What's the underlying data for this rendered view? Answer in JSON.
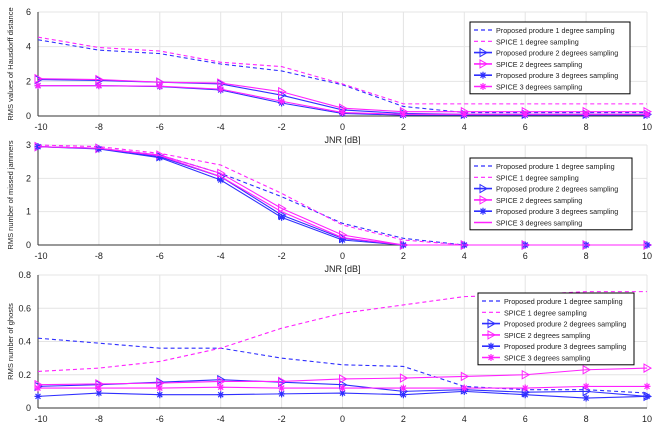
{
  "colors": {
    "blue": "#2f2fff",
    "magenta": "#ff22ff"
  },
  "chart_data": [
    {
      "type": "line",
      "xlabel": "JNR [dB]",
      "ylabel": "RMS values of Hausdorff distance",
      "ylim": [
        0,
        6
      ],
      "yticks": [
        0,
        2,
        4,
        6
      ],
      "xlim": [
        -10,
        10
      ],
      "xticks": [
        -10,
        -8,
        -6,
        -4,
        -2,
        0,
        2,
        4,
        6,
        8,
        10
      ],
      "grid": true,
      "legend": "top-right",
      "x": [
        -10,
        -8,
        -6,
        -4,
        -2,
        0,
        2,
        4,
        6,
        8,
        10
      ],
      "series": [
        {
          "name": "Proposed produre 1 degree sampling",
          "color": "blue",
          "style": "dashed",
          "marker": "none",
          "values": [
            4.4,
            3.8,
            3.6,
            3.0,
            2.6,
            1.8,
            0.55,
            0.2,
            0.2,
            0.2,
            0.2
          ]
        },
        {
          "name": "SPICE 1 degree sampling",
          "color": "magenta",
          "style": "dashed",
          "marker": "none",
          "values": [
            4.55,
            3.95,
            3.75,
            3.1,
            2.85,
            1.85,
            0.7,
            0.7,
            0.7,
            0.7,
            0.7
          ]
        },
        {
          "name": "Proposed produre 2 degrees sampling",
          "color": "blue",
          "style": "solid",
          "marker": "triangle",
          "values": [
            2.1,
            2.05,
            1.95,
            1.85,
            1.2,
            0.35,
            0.15,
            0.1,
            0.1,
            0.1,
            0.1
          ]
        },
        {
          "name": "SPICE 2 degrees sampling",
          "color": "magenta",
          "style": "solid",
          "marker": "triangle",
          "values": [
            2.15,
            2.1,
            1.95,
            1.9,
            1.4,
            0.45,
            0.25,
            0.25,
            0.25,
            0.25,
            0.25
          ]
        },
        {
          "name": "Proposed produre 3 degrees sampling",
          "color": "blue",
          "style": "solid",
          "marker": "star",
          "values": [
            1.75,
            1.75,
            1.7,
            1.5,
            0.75,
            0.15,
            0.05,
            0.05,
            0.05,
            0.05,
            0.05
          ]
        },
        {
          "name": "SPICE 3 degrees sampling",
          "color": "magenta",
          "style": "solid",
          "marker": "star",
          "values": [
            1.75,
            1.75,
            1.72,
            1.55,
            0.85,
            0.2,
            0.1,
            0.1,
            0.1,
            0.1,
            0.1
          ]
        }
      ]
    },
    {
      "type": "line",
      "xlabel": "JNR [dB]",
      "ylabel": "RMS number of missed jammers",
      "ylim": [
        0,
        3
      ],
      "yticks": [
        0,
        1,
        2,
        3
      ],
      "xlim": [
        -10,
        10
      ],
      "xticks": [
        -10,
        -8,
        -6,
        -4,
        -2,
        0,
        2,
        4,
        6,
        8,
        10
      ],
      "grid": true,
      "legend": "right",
      "x": [
        -10,
        -8,
        -6,
        -4,
        -2,
        0,
        2,
        4,
        6,
        8,
        10
      ],
      "series": [
        {
          "name": "Proposed produre 1 degree sampling",
          "color": "blue",
          "style": "dashed",
          "marker": "none",
          "values": [
            2.95,
            2.9,
            2.7,
            2.15,
            1.45,
            0.65,
            0.2,
            0,
            0,
            0,
            0
          ]
        },
        {
          "name": "SPICE 1 degree sampling",
          "color": "magenta",
          "style": "dashed",
          "marker": "none",
          "values": [
            3.0,
            2.95,
            2.75,
            2.4,
            1.55,
            0.6,
            0.15,
            0,
            0,
            0,
            0
          ]
        },
        {
          "name": "Proposed produre 2 degrees sampling",
          "color": "blue",
          "style": "solid",
          "marker": "triangle",
          "values": [
            2.95,
            2.9,
            2.65,
            2.05,
            0.9,
            0.2,
            0,
            0,
            0,
            0,
            0
          ]
        },
        {
          "name": "SPICE 2 degrees sampling",
          "color": "magenta",
          "style": "solid",
          "marker": "triangle",
          "values": [
            2.95,
            2.9,
            2.7,
            2.15,
            1.1,
            0.3,
            0,
            0,
            0,
            0,
            0
          ]
        },
        {
          "name": "Proposed produre 3 degrees sampling",
          "color": "blue",
          "style": "solid",
          "marker": "star",
          "values": [
            2.95,
            2.88,
            2.62,
            1.95,
            0.83,
            0.15,
            0,
            0,
            0,
            0,
            0
          ]
        },
        {
          "name": "SPICE 3 degrees sampling",
          "color": "magenta",
          "style": "solid",
          "marker": "none",
          "values": [
            2.95,
            2.9,
            2.68,
            2.05,
            1.0,
            0.22,
            0,
            0,
            0,
            0,
            0
          ]
        }
      ]
    },
    {
      "type": "line",
      "xlabel": "",
      "ylabel": "RMS number of ghosts",
      "ylim": [
        0,
        0.8
      ],
      "yticks": [
        0,
        0.2,
        0.4,
        0.6,
        0.8
      ],
      "xlim": [
        -10,
        10
      ],
      "xticks": [
        -10,
        -8,
        -6,
        -4,
        -2,
        0,
        2,
        4,
        6,
        8,
        10
      ],
      "grid": true,
      "legend": "right",
      "x": [
        -10,
        -8,
        -6,
        -4,
        -2,
        0,
        2,
        4,
        6,
        8,
        10
      ],
      "series": [
        {
          "name": "Proposed produre 1 degree sampling",
          "color": "blue",
          "style": "dashed",
          "marker": "none",
          "values": [
            0.42,
            0.39,
            0.36,
            0.36,
            0.3,
            0.26,
            0.25,
            0.13,
            0.11,
            0.11,
            0.09
          ]
        },
        {
          "name": "SPICE 1 degree sampling",
          "color": "magenta",
          "style": "dashed",
          "marker": "none",
          "values": [
            0.22,
            0.24,
            0.28,
            0.36,
            0.48,
            0.57,
            0.62,
            0.67,
            0.68,
            0.7,
            0.7
          ]
        },
        {
          "name": "Proposed produre 2 degrees sampling",
          "color": "blue",
          "style": "solid",
          "marker": "triangle",
          "values": [
            0.13,
            0.14,
            0.155,
            0.17,
            0.155,
            0.14,
            0.1,
            0.11,
            0.095,
            0.1,
            0.07
          ]
        },
        {
          "name": "SPICE 2 degrees sampling",
          "color": "magenta",
          "style": "solid",
          "marker": "triangle",
          "values": [
            0.14,
            0.145,
            0.15,
            0.16,
            0.16,
            0.175,
            0.18,
            0.19,
            0.2,
            0.23,
            0.24
          ]
        },
        {
          "name": "Proposed produre 3 degrees sampling",
          "color": "blue",
          "style": "solid",
          "marker": "star",
          "values": [
            0.07,
            0.09,
            0.08,
            0.08,
            0.085,
            0.09,
            0.08,
            0.1,
            0.08,
            0.06,
            0.07
          ]
        },
        {
          "name": "SPICE 3 degrees sampling",
          "color": "magenta",
          "style": "solid",
          "marker": "star",
          "values": [
            0.12,
            0.12,
            0.12,
            0.125,
            0.12,
            0.12,
            0.12,
            0.12,
            0.12,
            0.13,
            0.13
          ]
        }
      ]
    }
  ]
}
